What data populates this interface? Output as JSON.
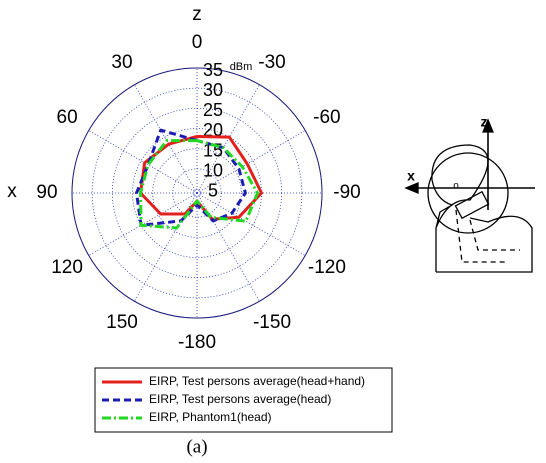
{
  "chart_data": {
    "type": "polar",
    "axis_title_top": "z",
    "axis_title_left": "x",
    "unit": "dBm",
    "caption": "(a)",
    "theta": [
      0,
      30,
      60,
      90,
      120,
      150,
      180,
      -150,
      -120,
      -90,
      -60,
      -30
    ],
    "thetaticks": [
      0,
      30,
      60,
      90,
      120,
      150,
      -180,
      -150,
      -120,
      -90,
      -60,
      -30
    ],
    "rlim": [
      4,
      35
    ],
    "rticks": [
      5,
      10,
      15,
      20,
      25,
      30,
      35
    ],
    "grid": true,
    "series": [
      {
        "name": "EIRP, Test persons average(head+hand)",
        "color": "#e3201c",
        "dash": "solid",
        "values": [
          18,
          18,
          19,
          18,
          14.4,
          10,
          6,
          11.5,
          16,
          20,
          18.4,
          20
        ]
      },
      {
        "name": "EIRP, Test persons average(head)",
        "color": "#1c1cb4",
        "dash": "dashed",
        "values": [
          17,
          22,
          18,
          19,
          20,
          12,
          7,
          12,
          14,
          16,
          16,
          17
        ]
      },
      {
        "name": "EIRP, Phantom1(head)",
        "color": "#22d822",
        "dash": "dashdot",
        "values": [
          17,
          19,
          18,
          18,
          20,
          14,
          6,
          11,
          18,
          19,
          17,
          17
        ]
      }
    ]
  },
  "diagram": {
    "z_label": "z",
    "x_label": "x",
    "marker": "o"
  }
}
